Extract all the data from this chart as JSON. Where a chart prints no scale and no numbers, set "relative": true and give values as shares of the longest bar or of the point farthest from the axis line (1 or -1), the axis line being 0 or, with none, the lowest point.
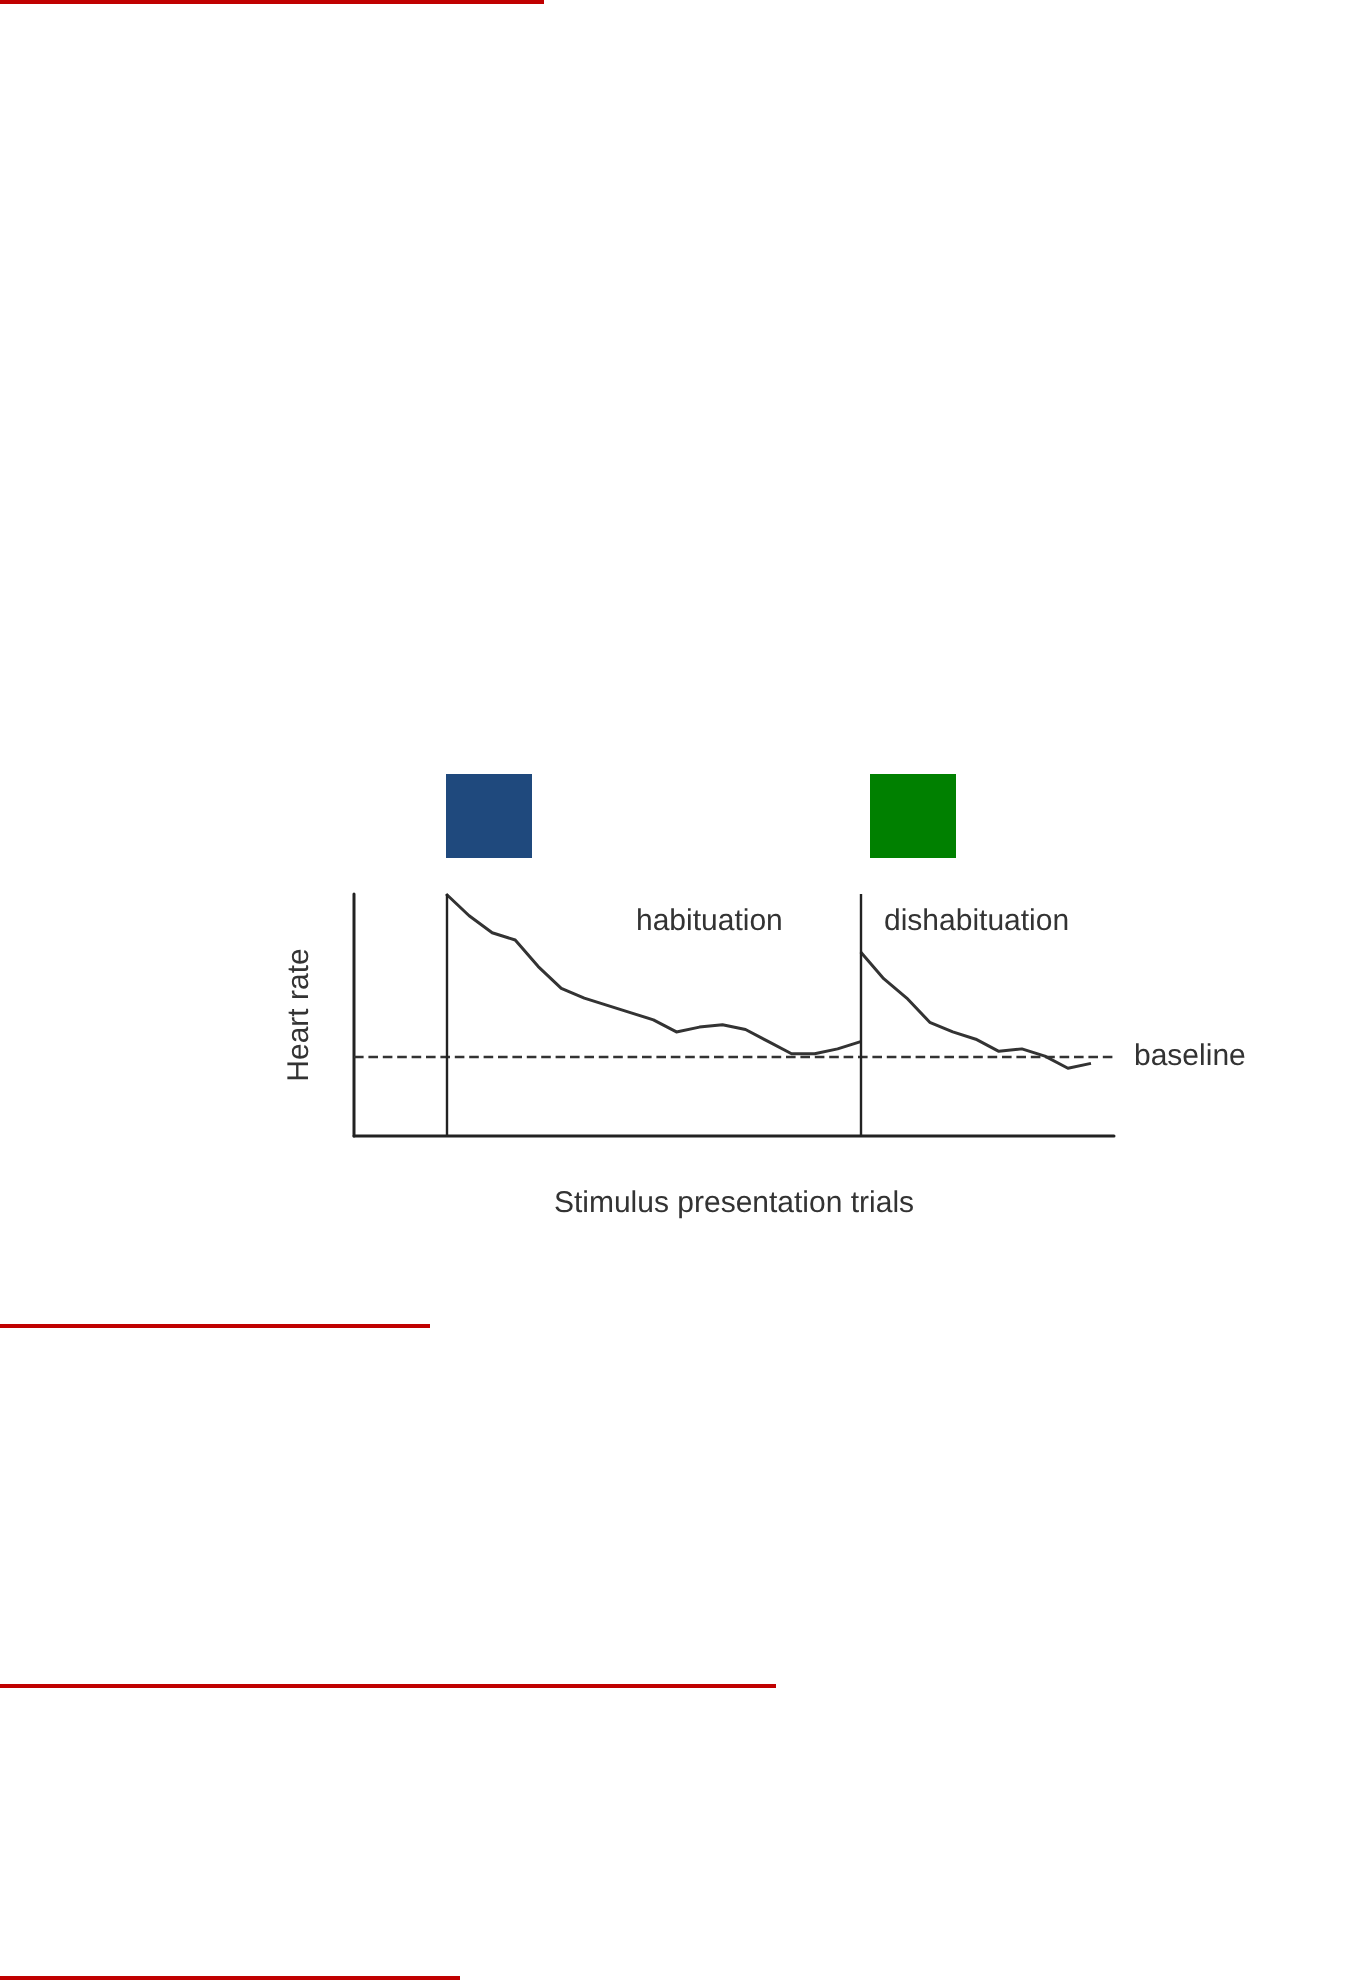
{
  "chart_data": {
    "type": "line",
    "relative": true,
    "xlabel": "Stimulus presentation trials",
    "ylabel": "Heart rate",
    "categories": [
      null,
      null,
      null,
      null,
      null,
      null,
      null,
      null,
      null,
      null,
      null,
      null,
      null,
      null,
      null,
      null,
      null,
      null,
      null,
      null,
      null,
      null,
      null,
      null,
      null,
      null,
      null,
      null,
      null,
      null,
      null,
      null,
      null,
      null
    ],
    "series": [
      {
        "color": "#333333",
        "values": [
          null,
          null,
          null,
          null,
          1.0,
          0.91,
          0.84,
          0.81,
          0.7,
          0.61,
          0.57,
          0.54,
          0.51,
          0.48,
          0.43,
          0.45,
          0.46,
          0.44,
          0.39,
          0.34,
          0.34,
          0.36,
          0.39,
          null,
          null,
          null,
          null,
          null,
          null,
          null,
          null,
          null,
          null,
          null
        ]
      },
      {
        "color": "#333333",
        "values": [
          null,
          null,
          null,
          null,
          null,
          null,
          null,
          null,
          null,
          null,
          null,
          null,
          null,
          null,
          null,
          null,
          null,
          null,
          null,
          null,
          null,
          null,
          0.76,
          0.65,
          0.57,
          0.47,
          0.43,
          0.4,
          0.35,
          0.36,
          0.33,
          0.28,
          0.3,
          null
        ]
      }
    ],
    "ref_lines": [
      {
        "axis": "y",
        "value": 0.33,
        "label": "baseline",
        "line_style": "dashed",
        "color": "#333333"
      }
    ],
    "annotations": [
      "habituation",
      "dishabituation"
    ],
    "grid": false,
    "marker": "none",
    "line_style": "solid"
  }
}
